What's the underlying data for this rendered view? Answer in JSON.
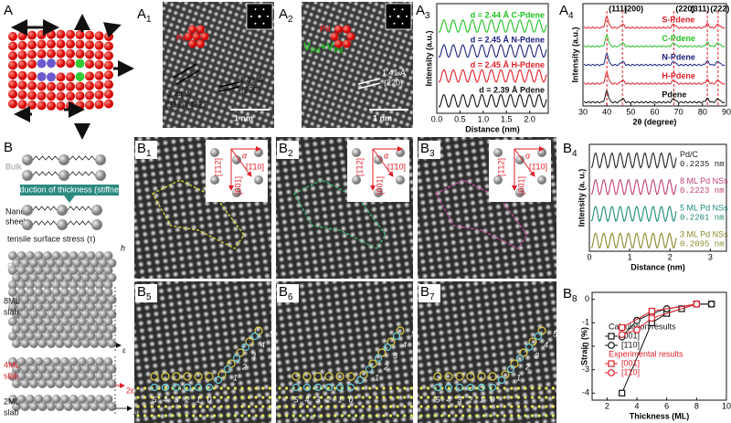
{
  "panel_labels": [
    {
      "letter": "A"
    },
    {
      "letter": "A",
      "sub": "1"
    },
    {
      "letter": "A",
      "sub": "2"
    },
    {
      "letter": "A",
      "sub": "3"
    },
    {
      "letter": "A",
      "sub": "4"
    },
    {
      "letter": "B"
    },
    {
      "letter": "B",
      "sub": "1"
    },
    {
      "letter": "B",
      "sub": "2"
    },
    {
      "letter": "B",
      "sub": "3"
    },
    {
      "letter": "B",
      "sub": "4"
    },
    {
      "letter": "B",
      "sub": "5"
    },
    {
      "letter": "B",
      "sub": "6"
    },
    {
      "letter": "B",
      "sub": "7"
    },
    {
      "letter": "B",
      "sub": "8"
    }
  ],
  "A1": {
    "element": "Pd",
    "d1": "2.44 Å",
    "plane1": "(311)/(422)",
    "d2": "1.41 Å",
    "plane2": "(220)",
    "scale": "1 nm"
  },
  "A2": {
    "element": "Pd",
    "vacancy": [
      "V",
      "Pd",
      "+V",
      "Pd"
    ],
    "d": "1.41 Å",
    "plane": "(220)",
    "scale": "1 nm"
  },
  "B_schematic": {
    "bulk": "Bulk",
    "reduction": "Reduction of thickness (stiffness)",
    "nano": [
      "Nano",
      "sheet"
    ],
    "stress": "tensile surface stress (τ)",
    "h": "h",
    "slabs": [
      {
        "name": [
          "Bulk"
        ]
      },
      {
        "name": [
          "8ML",
          "slab"
        ],
        "strain": "ε"
      },
      {
        "name": [
          "4ML",
          "slab"
        ],
        "strain": "2ε"
      },
      {
        "name": [
          "2ML",
          "slab"
        ],
        "strain": "4ε"
      }
    ]
  },
  "B_insets": {
    "dir1": "[1̄12]",
    "angle": "α",
    "dir2": "[1̄10]",
    "dir3": "[001]"
  },
  "B_indices": {
    "left": [
      5,
      4,
      3,
      2,
      1,
      0
    ],
    "right": [
      1,
      2,
      3,
      4,
      5
    ]
  },
  "chart_data": [
    {
      "type": "line",
      "xlabel": "Distance (nm)",
      "ylabel": "Intensity (a.u.)",
      "xlim": [
        0,
        2.4
      ],
      "xticks": [
        {
          "value": 0,
          "label": "0.0"
        },
        {
          "value": 0.5,
          "label": "0.5"
        },
        {
          "value": 1,
          "label": "1.0"
        },
        {
          "value": 1.5,
          "label": "1.5"
        },
        {
          "value": 2,
          "label": "2.0"
        }
      ],
      "labels": [
        {
          "text": "d = 2.44 Å  C-Pdene",
          "color": "#22c322"
        },
        {
          "text": "d = 2.45 Å  N-Pdene",
          "color": "#1a237e"
        },
        {
          "text": "d = 2.45 Å  H-Pdene",
          "color": "#e0202a"
        },
        {
          "text": "d = 2.39 Å     Pdene",
          "color": "#111111"
        }
      ]
    },
    {
      "type": "line",
      "xlabel": "2θ (degree)",
      "ylabel": "Intensity (a.u.)",
      "xlim": [
        30,
        90
      ],
      "xticks": [
        30,
        40,
        50,
        60,
        70,
        80,
        90
      ],
      "peaks": [
        {
          "label": "(111)",
          "x": 40
        },
        {
          "label": "(200)",
          "x": 46.5
        },
        {
          "label": "(220)",
          "x": 68
        },
        {
          "label": "(311)",
          "x": 82
        },
        {
          "label": "(222)",
          "x": 86.5
        }
      ],
      "labels": [
        {
          "text": "S-Pdene",
          "color": "#e0202a"
        },
        {
          "text": "C-Pdene",
          "color": "#22c322"
        },
        {
          "text": "N-Pdene",
          "color": "#1a237e"
        },
        {
          "text": "H-Pdene",
          "color": "#e0202a"
        },
        {
          "text": "Pdene",
          "color": "#111111"
        }
      ]
    },
    {
      "type": "line",
      "xlabel": "Distance (nm)",
      "ylabel": "Intensity (a. u.)",
      "xlim": [
        0,
        3.4
      ],
      "xticks": [
        0,
        1,
        2,
        3
      ],
      "labels": [
        {
          "name": "Pd/C",
          "d": "0.2235 nm",
          "color": "#222222"
        },
        {
          "name": "8 ML Pd NSs",
          "d": "0.2223 nm",
          "color": "#c0407a"
        },
        {
          "name": "5 ML Pd NSs",
          "d": "0.2201 nm",
          "color": "#1a8a78"
        },
        {
          "name": "3 ML Pd NSs",
          "d": "0.2095 nm",
          "color": "#8a8a2a"
        }
      ]
    },
    {
      "type": "scatter",
      "xlabel": "Thickness (ML)",
      "ylabel": "Strain (%)",
      "xlim": [
        1,
        10
      ],
      "ylim": [
        -4.3,
        0.3
      ],
      "xticks": [
        2,
        4,
        6,
        8,
        10
      ],
      "yticks": [
        0,
        -1,
        -2,
        -3,
        -4
      ],
      "legend_groups": [
        {
          "title": "Calculation results",
          "color": "#111111",
          "series": [
            {
              "name": "[001]",
              "marker": "square",
              "x": [
                3,
                5,
                6,
                7,
                8,
                9
              ],
              "values": [
                -4,
                -1,
                -0.6,
                -0.4,
                -0.2,
                -0.2
              ]
            },
            {
              "name": "[1̄10]",
              "marker": "circle",
              "x": [
                3,
                4,
                5,
                6,
                8,
                9
              ],
              "values": [
                -1.6,
                -0.9,
                -0.6,
                -0.4,
                -0.2,
                -0.2
              ]
            }
          ]
        },
        {
          "title": "Experimental results",
          "color": "#e0202a",
          "series": [
            {
              "name": "[001]",
              "marker": "square",
              "x": [
                3,
                5,
                8
              ],
              "values": [
                -1.2,
                -0.5,
                -0.2
              ]
            },
            {
              "name": "[1̄10]",
              "marker": "circle",
              "x": [
                3,
                4,
                5,
                8
              ],
              "values": [
                -1.5,
                -1.3,
                -0.8,
                -0.2
              ]
            }
          ]
        }
      ]
    }
  ]
}
